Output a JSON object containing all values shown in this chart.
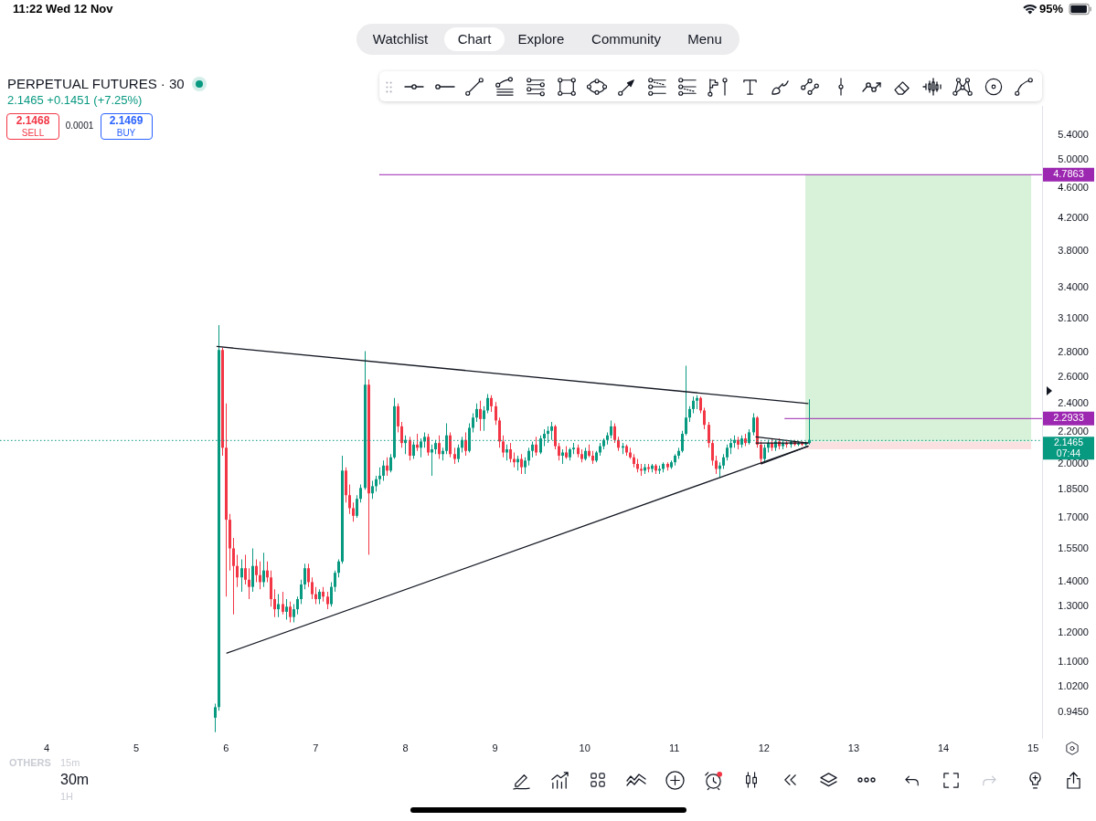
{
  "chart_data": {
    "type": "candlestick",
    "title": "PERPETUAL FUTURES · 30",
    "subtitle": "2.1465 +0.1451 (+7.25%)",
    "x": [
      5.875,
      5.917,
      5.958,
      6,
      6.042,
      6.083,
      6.125,
      6.167,
      6.208,
      6.25,
      6.292,
      6.333,
      6.375,
      6.417,
      6.458,
      6.5,
      6.542,
      6.583,
      6.625,
      6.667,
      6.708,
      6.75,
      6.792,
      6.833,
      6.875,
      6.917,
      6.958,
      7,
      7.042,
      7.083,
      7.125,
      7.167,
      7.208,
      7.25,
      7.292,
      7.333,
      7.375,
      7.417,
      7.458,
      7.5,
      7.542,
      7.583,
      7.625,
      7.667,
      7.708,
      7.75,
      7.792,
      7.833,
      7.875,
      7.917,
      7.958,
      8,
      8.042,
      8.083,
      8.125,
      8.167,
      8.208,
      8.25,
      8.292,
      8.333,
      8.375,
      8.417,
      8.458,
      8.5,
      8.542,
      8.583,
      8.625,
      8.667,
      8.708,
      8.75,
      8.792,
      8.833,
      8.875,
      8.917,
      8.958,
      9,
      9.042,
      9.083,
      9.125,
      9.167,
      9.208,
      9.25,
      9.292,
      9.333,
      9.375,
      9.417,
      9.458,
      9.5,
      9.542,
      9.583,
      9.625,
      9.667,
      9.708,
      9.75,
      9.792,
      9.833,
      9.875,
      9.917,
      9.958,
      10,
      10.042,
      10.083,
      10.125,
      10.167,
      10.208,
      10.25,
      10.292,
      10.333,
      10.375,
      10.417,
      10.458,
      10.5,
      10.542,
      10.583,
      10.625,
      10.667,
      10.708,
      10.75,
      10.792,
      10.833,
      10.875,
      10.917,
      10.958,
      11,
      11.042,
      11.083,
      11.125,
      11.167,
      11.208,
      11.25,
      11.292,
      11.333,
      11.375,
      11.417,
      11.458,
      11.5,
      11.542,
      11.583,
      11.625,
      11.667,
      11.708,
      11.75,
      11.792,
      11.833,
      11.875,
      11.917,
      11.958,
      12,
      12.042,
      12.083,
      12.125,
      12.167,
      12.208,
      12.25,
      12.292,
      12.333,
      12.375,
      12.417,
      12.458,
      12.5
    ],
    "ohlc": [
      [
        0.93,
        0.97,
        0.89,
        0.96
      ],
      [
        0.96,
        3.04,
        0.95,
        2.82
      ],
      [
        2.82,
        2.84,
        2.05,
        2.1
      ],
      [
        2.1,
        2.4,
        1.34,
        1.69
      ],
      [
        1.69,
        1.72,
        1.45,
        1.55
      ],
      [
        1.55,
        1.6,
        1.27,
        1.47
      ],
      [
        1.47,
        1.52,
        1.38,
        1.42
      ],
      [
        1.42,
        1.5,
        1.36,
        1.46
      ],
      [
        1.46,
        1.52,
        1.39,
        1.41
      ],
      [
        1.41,
        1.46,
        1.33,
        1.38
      ],
      [
        1.38,
        1.55,
        1.36,
        1.47
      ],
      [
        1.47,
        1.5,
        1.4,
        1.43
      ],
      [
        1.43,
        1.49,
        1.37,
        1.4
      ],
      [
        1.4,
        1.53,
        1.38,
        1.45
      ],
      [
        1.45,
        1.49,
        1.4,
        1.42
      ],
      [
        1.42,
        1.45,
        1.3,
        1.33
      ],
      [
        1.33,
        1.37,
        1.26,
        1.29
      ],
      [
        1.29,
        1.35,
        1.26,
        1.31
      ],
      [
        1.31,
        1.36,
        1.27,
        1.28
      ],
      [
        1.28,
        1.33,
        1.25,
        1.3
      ],
      [
        1.3,
        1.32,
        1.24,
        1.26
      ],
      [
        1.26,
        1.31,
        1.24,
        1.29
      ],
      [
        1.29,
        1.34,
        1.27,
        1.33
      ],
      [
        1.33,
        1.41,
        1.31,
        1.39
      ],
      [
        1.39,
        1.48,
        1.37,
        1.46
      ],
      [
        1.46,
        1.48,
        1.38,
        1.4
      ],
      [
        1.4,
        1.42,
        1.33,
        1.35
      ],
      [
        1.35,
        1.38,
        1.31,
        1.33
      ],
      [
        1.33,
        1.37,
        1.31,
        1.36
      ],
      [
        1.36,
        1.38,
        1.32,
        1.34
      ],
      [
        1.34,
        1.36,
        1.29,
        1.31
      ],
      [
        1.31,
        1.4,
        1.3,
        1.38
      ],
      [
        1.38,
        1.45,
        1.36,
        1.44
      ],
      [
        1.44,
        1.5,
        1.42,
        1.49
      ],
      [
        1.49,
        2.05,
        1.48,
        1.96
      ],
      [
        1.96,
        1.98,
        1.78,
        1.82
      ],
      [
        1.82,
        1.88,
        1.72,
        1.75
      ],
      [
        1.75,
        1.78,
        1.68,
        1.71
      ],
      [
        1.71,
        1.82,
        1.7,
        1.8
      ],
      [
        1.8,
        1.88,
        1.78,
        1.86
      ],
      [
        1.86,
        2.81,
        1.85,
        2.54
      ],
      [
        2.54,
        2.58,
        1.52,
        1.83
      ],
      [
        1.83,
        1.9,
        1.8,
        1.87
      ],
      [
        1.87,
        1.93,
        1.84,
        1.91
      ],
      [
        1.91,
        1.98,
        1.88,
        1.93
      ],
      [
        1.93,
        2.02,
        1.9,
        1.99
      ],
      [
        1.99,
        2.04,
        1.93,
        1.96
      ],
      [
        1.96,
        2.06,
        1.95,
        2.04
      ],
      [
        2.04,
        2.44,
        2.03,
        2.38
      ],
      [
        2.38,
        2.4,
        2.2,
        2.24
      ],
      [
        2.24,
        2.27,
        2.1,
        2.13
      ],
      [
        2.13,
        2.18,
        2.06,
        2.15
      ],
      [
        2.15,
        2.17,
        2.02,
        2.05
      ],
      [
        2.05,
        2.14,
        2.03,
        2.12
      ],
      [
        2.12,
        2.19,
        2.08,
        2.1
      ],
      [
        2.1,
        2.16,
        2.04,
        2.14
      ],
      [
        2.14,
        2.2,
        2.1,
        2.17
      ],
      [
        2.17,
        2.19,
        2.05,
        2.07
      ],
      [
        2.07,
        2.12,
        1.93,
        2.09
      ],
      [
        2.09,
        2.15,
        2.06,
        2.13
      ],
      [
        2.13,
        2.18,
        2.03,
        2.06
      ],
      [
        2.06,
        2.1,
        2.02,
        2.08
      ],
      [
        2.08,
        2.26,
        2.06,
        2.18
      ],
      [
        2.18,
        2.2,
        2.04,
        2.06
      ],
      [
        2.06,
        2.1,
        2,
        2.03
      ],
      [
        2.03,
        2.12,
        2.01,
        2.1
      ],
      [
        2.1,
        2.17,
        2.07,
        2.15
      ],
      [
        2.15,
        2.2,
        2.05,
        2.08
      ],
      [
        2.08,
        2.26,
        2.07,
        2.23
      ],
      [
        2.23,
        2.33,
        2.2,
        2.3
      ],
      [
        2.3,
        2.4,
        2.27,
        2.36
      ],
      [
        2.36,
        2.42,
        2.21,
        2.29
      ],
      [
        2.29,
        2.38,
        2.21,
        2.35
      ],
      [
        2.35,
        2.47,
        2.33,
        2.44
      ],
      [
        2.44,
        2.46,
        2.34,
        2.38
      ],
      [
        2.38,
        2.41,
        2.25,
        2.28
      ],
      [
        2.28,
        2.3,
        2.1,
        2.14
      ],
      [
        2.14,
        2.18,
        2.04,
        2.07
      ],
      [
        2.07,
        2.12,
        2.02,
        2.09
      ],
      [
        2.09,
        2.13,
        2.01,
        2.03
      ],
      [
        2.03,
        2.07,
        1.98,
        2.01
      ],
      [
        2.01,
        2.05,
        1.96,
        2.03
      ],
      [
        2.03,
        2.06,
        1.94,
        1.98
      ],
      [
        1.98,
        2.04,
        1.94,
        2.02
      ],
      [
        2.02,
        2.1,
        1.99,
        2.08
      ],
      [
        2.08,
        2.14,
        2.04,
        2.12
      ],
      [
        2.12,
        2.17,
        2.05,
        2.07
      ],
      [
        2.07,
        2.18,
        2.06,
        2.16
      ],
      [
        2.16,
        2.22,
        2.11,
        2.19
      ],
      [
        2.19,
        2.24,
        2.13,
        2.21
      ],
      [
        2.21,
        2.27,
        2.15,
        2.24
      ],
      [
        2.24,
        2.25,
        2.09,
        2.11
      ],
      [
        2.11,
        2.13,
        2.02,
        2.05
      ],
      [
        2.05,
        2.09,
        2,
        2.07
      ],
      [
        2.07,
        2.11,
        2.03,
        2.04
      ],
      [
        2.04,
        2.1,
        2.02,
        2.09
      ],
      [
        2.09,
        2.13,
        2.06,
        2.1
      ],
      [
        2.1,
        2.12,
        2.04,
        2.06
      ],
      [
        2.06,
        2.09,
        2.01,
        2.03
      ],
      [
        2.03,
        2.1,
        2.02,
        2.08
      ],
      [
        2.08,
        2.12,
        2.04,
        2.05
      ],
      [
        2.05,
        2.08,
        2,
        2.02
      ],
      [
        2.02,
        2.08,
        2.01,
        2.07
      ],
      [
        2.07,
        2.13,
        2.05,
        2.11
      ],
      [
        2.11,
        2.16,
        2.09,
        2.15
      ],
      [
        2.15,
        2.2,
        2.12,
        2.18
      ],
      [
        2.18,
        2.28,
        2.16,
        2.24
      ],
      [
        2.24,
        2.26,
        2.13,
        2.15
      ],
      [
        2.15,
        2.17,
        2.08,
        2.1
      ],
      [
        2.1,
        2.13,
        2.06,
        2.11
      ],
      [
        2.11,
        2.12,
        2.05,
        2.07
      ],
      [
        2.07,
        2.1,
        2.03,
        2.04
      ],
      [
        2.04,
        2.06,
        1.98,
        2
      ],
      [
        2,
        2.03,
        1.95,
        1.97
      ],
      [
        1.97,
        2,
        1.93,
        1.96
      ],
      [
        1.96,
        2,
        1.94,
        1.98
      ],
      [
        1.98,
        2,
        1.95,
        1.97
      ],
      [
        1.97,
        2,
        1.95,
        1.99
      ],
      [
        1.99,
        2,
        1.94,
        1.96
      ],
      [
        1.96,
        1.99,
        1.94,
        1.97
      ],
      [
        1.97,
        2.01,
        1.95,
        2
      ],
      [
        2,
        2.01,
        1.96,
        1.98
      ],
      [
        1.98,
        2.02,
        1.97,
        2.01
      ],
      [
        2.01,
        2.06,
        1.99,
        2.05
      ],
      [
        2.05,
        2.1,
        2.03,
        2.08
      ],
      [
        2.08,
        2.21,
        2.07,
        2.19
      ],
      [
        2.19,
        2.69,
        2.18,
        2.3
      ],
      [
        2.3,
        2.38,
        2.27,
        2.36
      ],
      [
        2.36,
        2.45,
        2.33,
        2.42
      ],
      [
        2.42,
        2.46,
        2.36,
        2.44
      ],
      [
        2.44,
        2.45,
        2.33,
        2.35
      ],
      [
        2.35,
        2.37,
        2.22,
        2.25
      ],
      [
        2.25,
        2.27,
        2.1,
        2.13
      ],
      [
        2.13,
        2.15,
        1.99,
        2.02
      ],
      [
        2.02,
        2.05,
        1.94,
        1.97
      ],
      [
        1.97,
        2.01,
        1.92,
        1.99
      ],
      [
        1.99,
        2.06,
        1.97,
        2.04
      ],
      [
        2.04,
        2.12,
        2.02,
        2.1
      ],
      [
        2.1,
        2.16,
        2.06,
        2.13
      ],
      [
        2.13,
        2.18,
        2.1,
        2.15
      ],
      [
        2.15,
        2.17,
        2.09,
        2.12
      ],
      [
        2.12,
        2.18,
        2.1,
        2.16
      ],
      [
        2.16,
        2.19,
        2.11,
        2.13
      ],
      [
        2.13,
        2.22,
        2.12,
        2.2
      ],
      [
        2.2,
        2.33,
        2.18,
        2.3
      ],
      [
        2.3,
        2.31,
        2.1,
        2.12
      ],
      [
        2.12,
        2.14,
        2,
        2.03
      ],
      [
        2.03,
        2.12,
        2.01,
        2.1
      ],
      [
        2.1,
        2.15,
        2.07,
        2.13
      ],
      [
        2.13,
        2.16,
        2.08,
        2.1
      ],
      [
        2.1,
        2.15,
        2.08,
        2.14
      ],
      [
        2.14,
        2.16,
        2.09,
        2.11
      ],
      [
        2.11,
        2.15,
        2.09,
        2.13
      ],
      [
        2.13,
        2.15,
        2.1,
        2.12
      ],
      [
        2.12,
        2.15,
        2.1,
        2.14
      ],
      [
        2.14,
        2.15,
        2.11,
        2.12
      ],
      [
        2.12,
        2.14,
        2.11,
        2.13
      ],
      [
        2.13,
        2.14,
        2.11,
        2.12
      ],
      [
        2.12,
        2.14,
        2.11,
        2.13
      ],
      [
        2.13,
        2.43,
        2.12,
        2.15
      ]
    ],
    "colors": [
      "#089981",
      "#089981",
      "#f23645",
      "#f23645",
      "#f23645",
      "#f23645",
      "#f23645",
      "#089981",
      "#f23645",
      "#f23645",
      "#089981",
      "#f23645",
      "#f23645",
      "#089981",
      "#f23645",
      "#f23645",
      "#f23645",
      "#089981",
      "#f23645",
      "#089981",
      "#f23645",
      "#089981",
      "#089981",
      "#089981",
      "#089981",
      "#f23645",
      "#f23645",
      "#f23645",
      "#089981",
      "#f23645",
      "#f23645",
      "#089981",
      "#089981",
      "#089981",
      "#089981",
      "#f23645",
      "#f23645",
      "#f23645",
      "#089981",
      "#089981",
      "#089981",
      "#f23645",
      "#089981",
      "#089981",
      "#089981",
      "#089981",
      "#f23645",
      "#089981",
      "#089981",
      "#f23645",
      "#f23645",
      "#089981",
      "#f23645",
      "#089981",
      "#f23645",
      "#089981",
      "#089981",
      "#f23645",
      "#089981",
      "#089981",
      "#f23645",
      "#089981",
      "#089981",
      "#f23645",
      "#f23645",
      "#089981",
      "#089981",
      "#f23645",
      "#089981",
      "#089981",
      "#089981",
      "#f23645",
      "#089981",
      "#089981",
      "#f23645",
      "#f23645",
      "#f23645",
      "#f23645",
      "#089981",
      "#f23645",
      "#f23645",
      "#089981",
      "#f23645",
      "#089981",
      "#089981",
      "#089981",
      "#f23645",
      "#089981",
      "#089981",
      "#089981",
      "#089981",
      "#f23645",
      "#f23645",
      "#089981",
      "#f23645",
      "#089981",
      "#089981",
      "#f23645",
      "#f23645",
      "#089981",
      "#f23645",
      "#f23645",
      "#089981",
      "#089981",
      "#089981",
      "#089981",
      "#089981",
      "#f23645",
      "#f23645",
      "#089981",
      "#f23645",
      "#f23645",
      "#f23645",
      "#f23645",
      "#f23645",
      "#089981",
      "#f23645",
      "#089981",
      "#f23645",
      "#089981",
      "#089981",
      "#f23645",
      "#089981",
      "#089981",
      "#089981",
      "#089981",
      "#089981",
      "#089981",
      "#089981",
      "#089981",
      "#f23645",
      "#f23645",
      "#f23645",
      "#f23645",
      "#f23645",
      "#089981",
      "#089981",
      "#089981",
      "#089981",
      "#089981",
      "#f23645",
      "#089981",
      "#f23645",
      "#089981",
      "#089981",
      "#f23645",
      "#f23645",
      "#089981",
      "#089981",
      "#f23645",
      "#089981",
      "#f23645",
      "#089981",
      "#f23645",
      "#089981",
      "#f23645",
      "#089981",
      "#f23645",
      "#089981",
      "#089981"
    ],
    "series": [
      {
        "type": "line",
        "x": [
          5.9,
          12.49
        ],
        "values": [
          2.85,
          2.4
        ],
        "color": "#131722"
      },
      {
        "type": "line",
        "x": [
          6.01,
          12.49
        ],
        "values": [
          1.13,
          2.11
        ],
        "color": "#131722"
      },
      {
        "type": "line",
        "x": [
          11.91,
          12.49
        ],
        "values": [
          2.17,
          2.13
        ],
        "color": "#131722"
      },
      {
        "type": "line",
        "x": [
          11.91,
          12.49
        ],
        "values": [
          2.13,
          2.13
        ],
        "color": "#131722"
      },
      {
        "type": "line",
        "x": [
          11.97,
          12.49
        ],
        "values": [
          2.0,
          2.11
        ],
        "color": "#131722"
      },
      {
        "type": "line",
        "name": "4.7863",
        "x": [
          7.71,
          15.1
        ],
        "values": [
          4.7863,
          4.7863
        ],
        "color": "#9c27b0"
      },
      {
        "type": "line",
        "name": "2.2933",
        "x": [
          12.23,
          15.1
        ],
        "values": [
          2.2933,
          2.2933
        ],
        "color": "#9c27b0"
      },
      {
        "type": "line",
        "x": [
          12.46,
          14.98
        ],
        "values": [
          null,
          null
        ],
        "lower": [
          2.14,
          2.14
        ],
        "upper": [
          4.7863,
          4.7863
        ],
        "color": "#d8f1d9"
      },
      {
        "type": "line",
        "x": [
          12.46,
          14.98
        ],
        "values": [
          null,
          null
        ],
        "lower": [
          2.09,
          2.09
        ],
        "upper": [
          2.14,
          2.14
        ],
        "color": "#fbe0e2"
      }
    ],
    "ref_lines": [
      {
        "axis": "y",
        "value": 2.1465,
        "label": "2.1465",
        "color": "#089981",
        "line_style": "dotted"
      }
    ],
    "xlim": [
      3.48,
      15.1
    ],
    "xticks": [
      4,
      5,
      6,
      7,
      8,
      9,
      10,
      11,
      12,
      13,
      14,
      15
    ],
    "ylim": [
      0.875,
      5.88
    ],
    "yticks": [
      {
        "value": 0.945,
        "label": "0.9450"
      },
      {
        "value": 1.02,
        "label": "1.0200"
      },
      {
        "value": 1.1,
        "label": "1.1000"
      },
      {
        "value": 1.2,
        "label": "1.2000"
      },
      {
        "value": 1.3,
        "label": "1.3000"
      },
      {
        "value": 1.4,
        "label": "1.4000"
      },
      {
        "value": 1.55,
        "label": "1.5500"
      },
      {
        "value": 1.7,
        "label": "1.7000"
      },
      {
        "value": 1.85,
        "label": "1.8500"
      },
      {
        "value": 2,
        "label": "2.0000"
      },
      {
        "value": 2.2,
        "label": "2.2000"
      },
      {
        "value": 2.4,
        "label": "2.4000"
      },
      {
        "value": 2.6,
        "label": "2.6000"
      },
      {
        "value": 2.8,
        "label": "2.8000"
      },
      {
        "value": 3.1,
        "label": "3.1000"
      },
      {
        "value": 3.4,
        "label": "3.4000"
      },
      {
        "value": 3.8,
        "label": "3.8000"
      },
      {
        "value": 4.2,
        "label": "4.2000"
      },
      {
        "value": 4.6,
        "label": "4.6000"
      },
      {
        "value": 5,
        "label": "5.0000"
      },
      {
        "value": 5.4,
        "label": "5.4000"
      }
    ],
    "log": true,
    "grid": false,
    "legend": false,
    "marker": "none",
    "annotations": [
      "11:22",
      "Wed 12 Nov",
      "95%",
      "Watchlist",
      "Chart",
      "Explore",
      "Community",
      "Menu",
      "2.1468",
      "SELL",
      "0.0001",
      "2.1469",
      "BUY",
      "07:44",
      "OTHERS",
      "15m",
      "30m",
      "1H"
    ]
  }
}
